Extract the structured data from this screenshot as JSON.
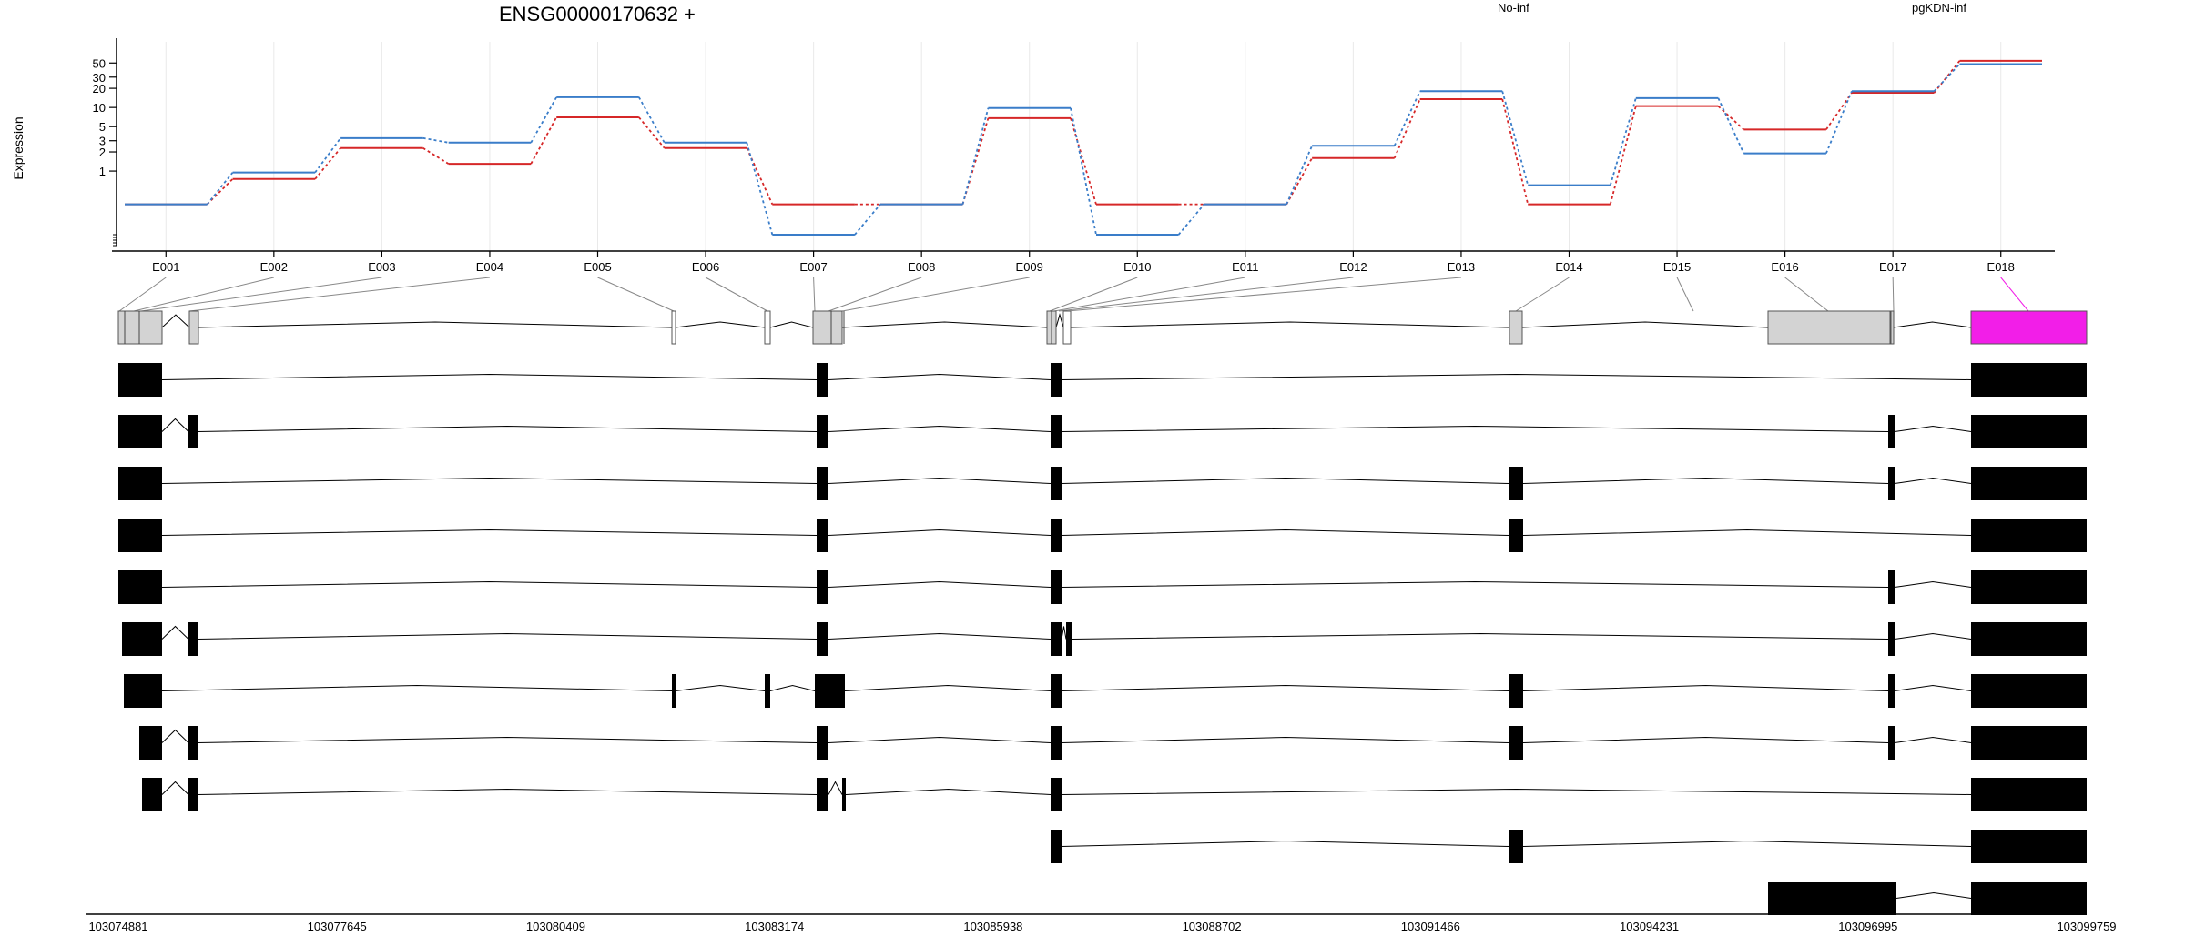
{
  "chart_data": {
    "type": "line",
    "title": "ENSG00000170632 +",
    "ylabel": "Expression",
    "y_scale": "log",
    "y_ticks": [
      1,
      2,
      3,
      5,
      10,
      20,
      30,
      50
    ],
    "ylim": [
      0.1,
      80
    ],
    "categories": [
      "E001",
      "E002",
      "E003",
      "E004",
      "E005",
      "E006",
      "E007",
      "E008",
      "E009",
      "E010",
      "E011",
      "E012",
      "E013",
      "E014",
      "E015",
      "E016",
      "E017",
      "E018"
    ],
    "series": [
      {
        "name": "No-inf",
        "color": "#d62728",
        "values": [
          0.3,
          0.75,
          2.3,
          1.3,
          7.0,
          2.3,
          0.3,
          0.3,
          6.8,
          0.3,
          0.3,
          1.6,
          13.5,
          0.3,
          10.5,
          4.5,
          17.0,
          54.0
        ]
      },
      {
        "name": "pgKDN-inf",
        "color": "#3a7dc9",
        "values": [
          0.3,
          0.95,
          3.3,
          2.8,
          14.5,
          2.8,
          0.1,
          0.3,
          9.8,
          0.1,
          0.3,
          2.5,
          18.0,
          0.6,
          14.0,
          1.9,
          18.0,
          48.0
        ]
      }
    ],
    "genomic_axis": {
      "ticks": [
        "103074881",
        "103077645",
        "103080409",
        "103083174",
        "103085938",
        "103088702",
        "103091466",
        "103094231",
        "103096995",
        "103099759"
      ]
    },
    "gene_model_highlight_color": "#f21ee8",
    "transcript_count": 11
  }
}
